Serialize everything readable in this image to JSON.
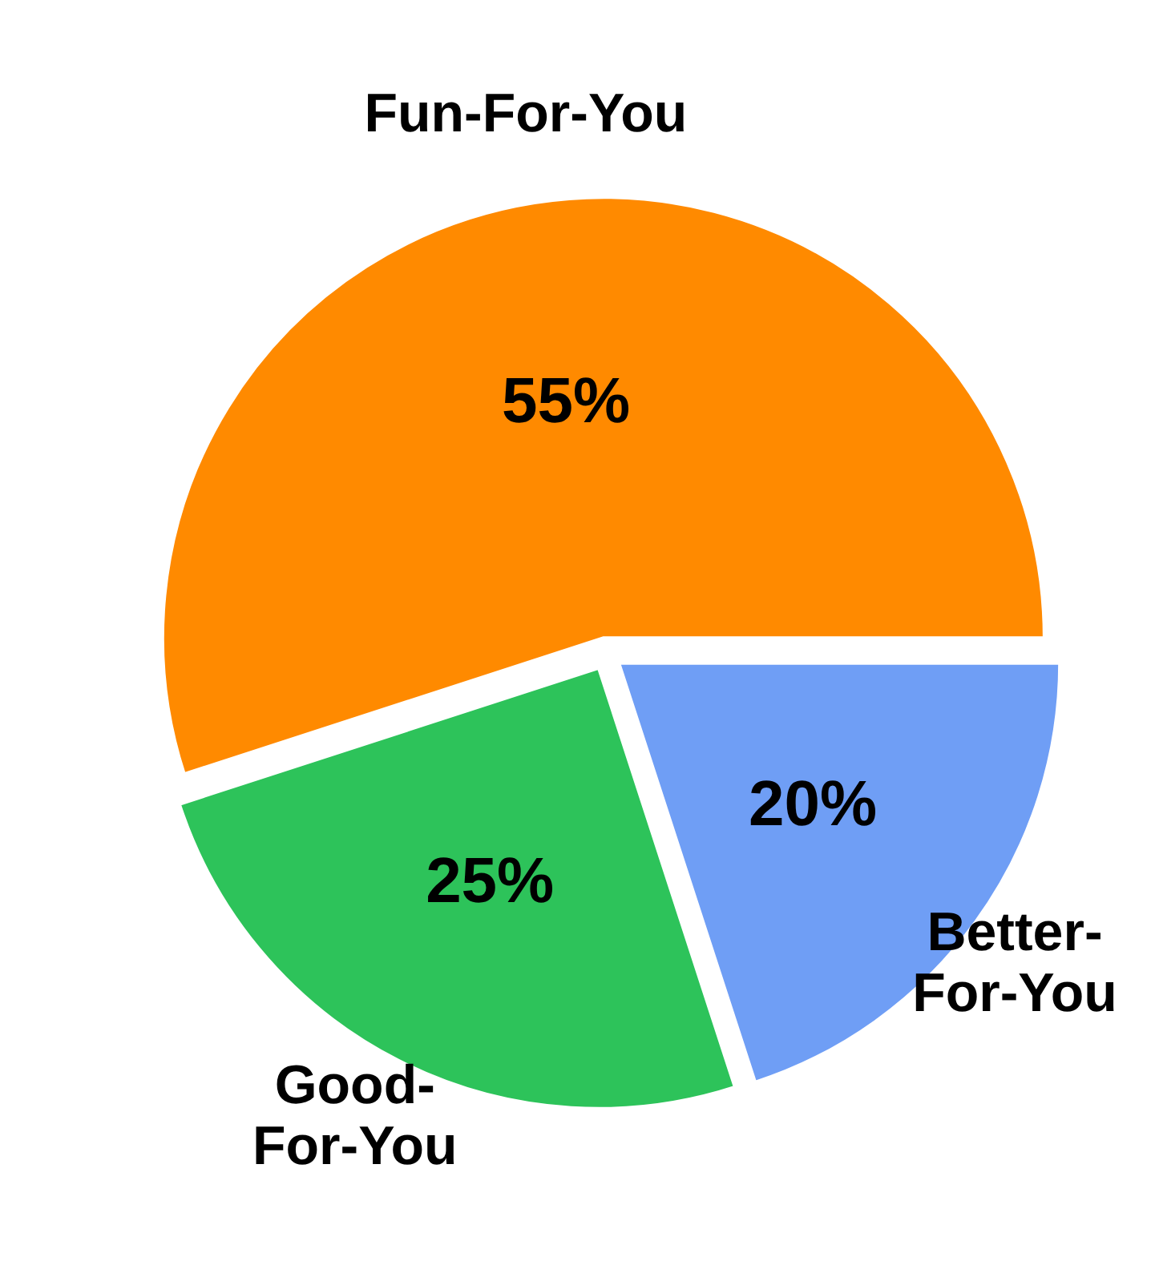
{
  "chart_data": {
    "type": "pie",
    "categories": [
      "Fun-For-You",
      "Better-For-You",
      "Good-For-You"
    ],
    "values": [
      55,
      20,
      25
    ],
    "colors": [
      "#ff8a00",
      "#6f9ef5",
      "#2dc35a"
    ],
    "value_labels": [
      "55%",
      "20%",
      "25%"
    ]
  }
}
